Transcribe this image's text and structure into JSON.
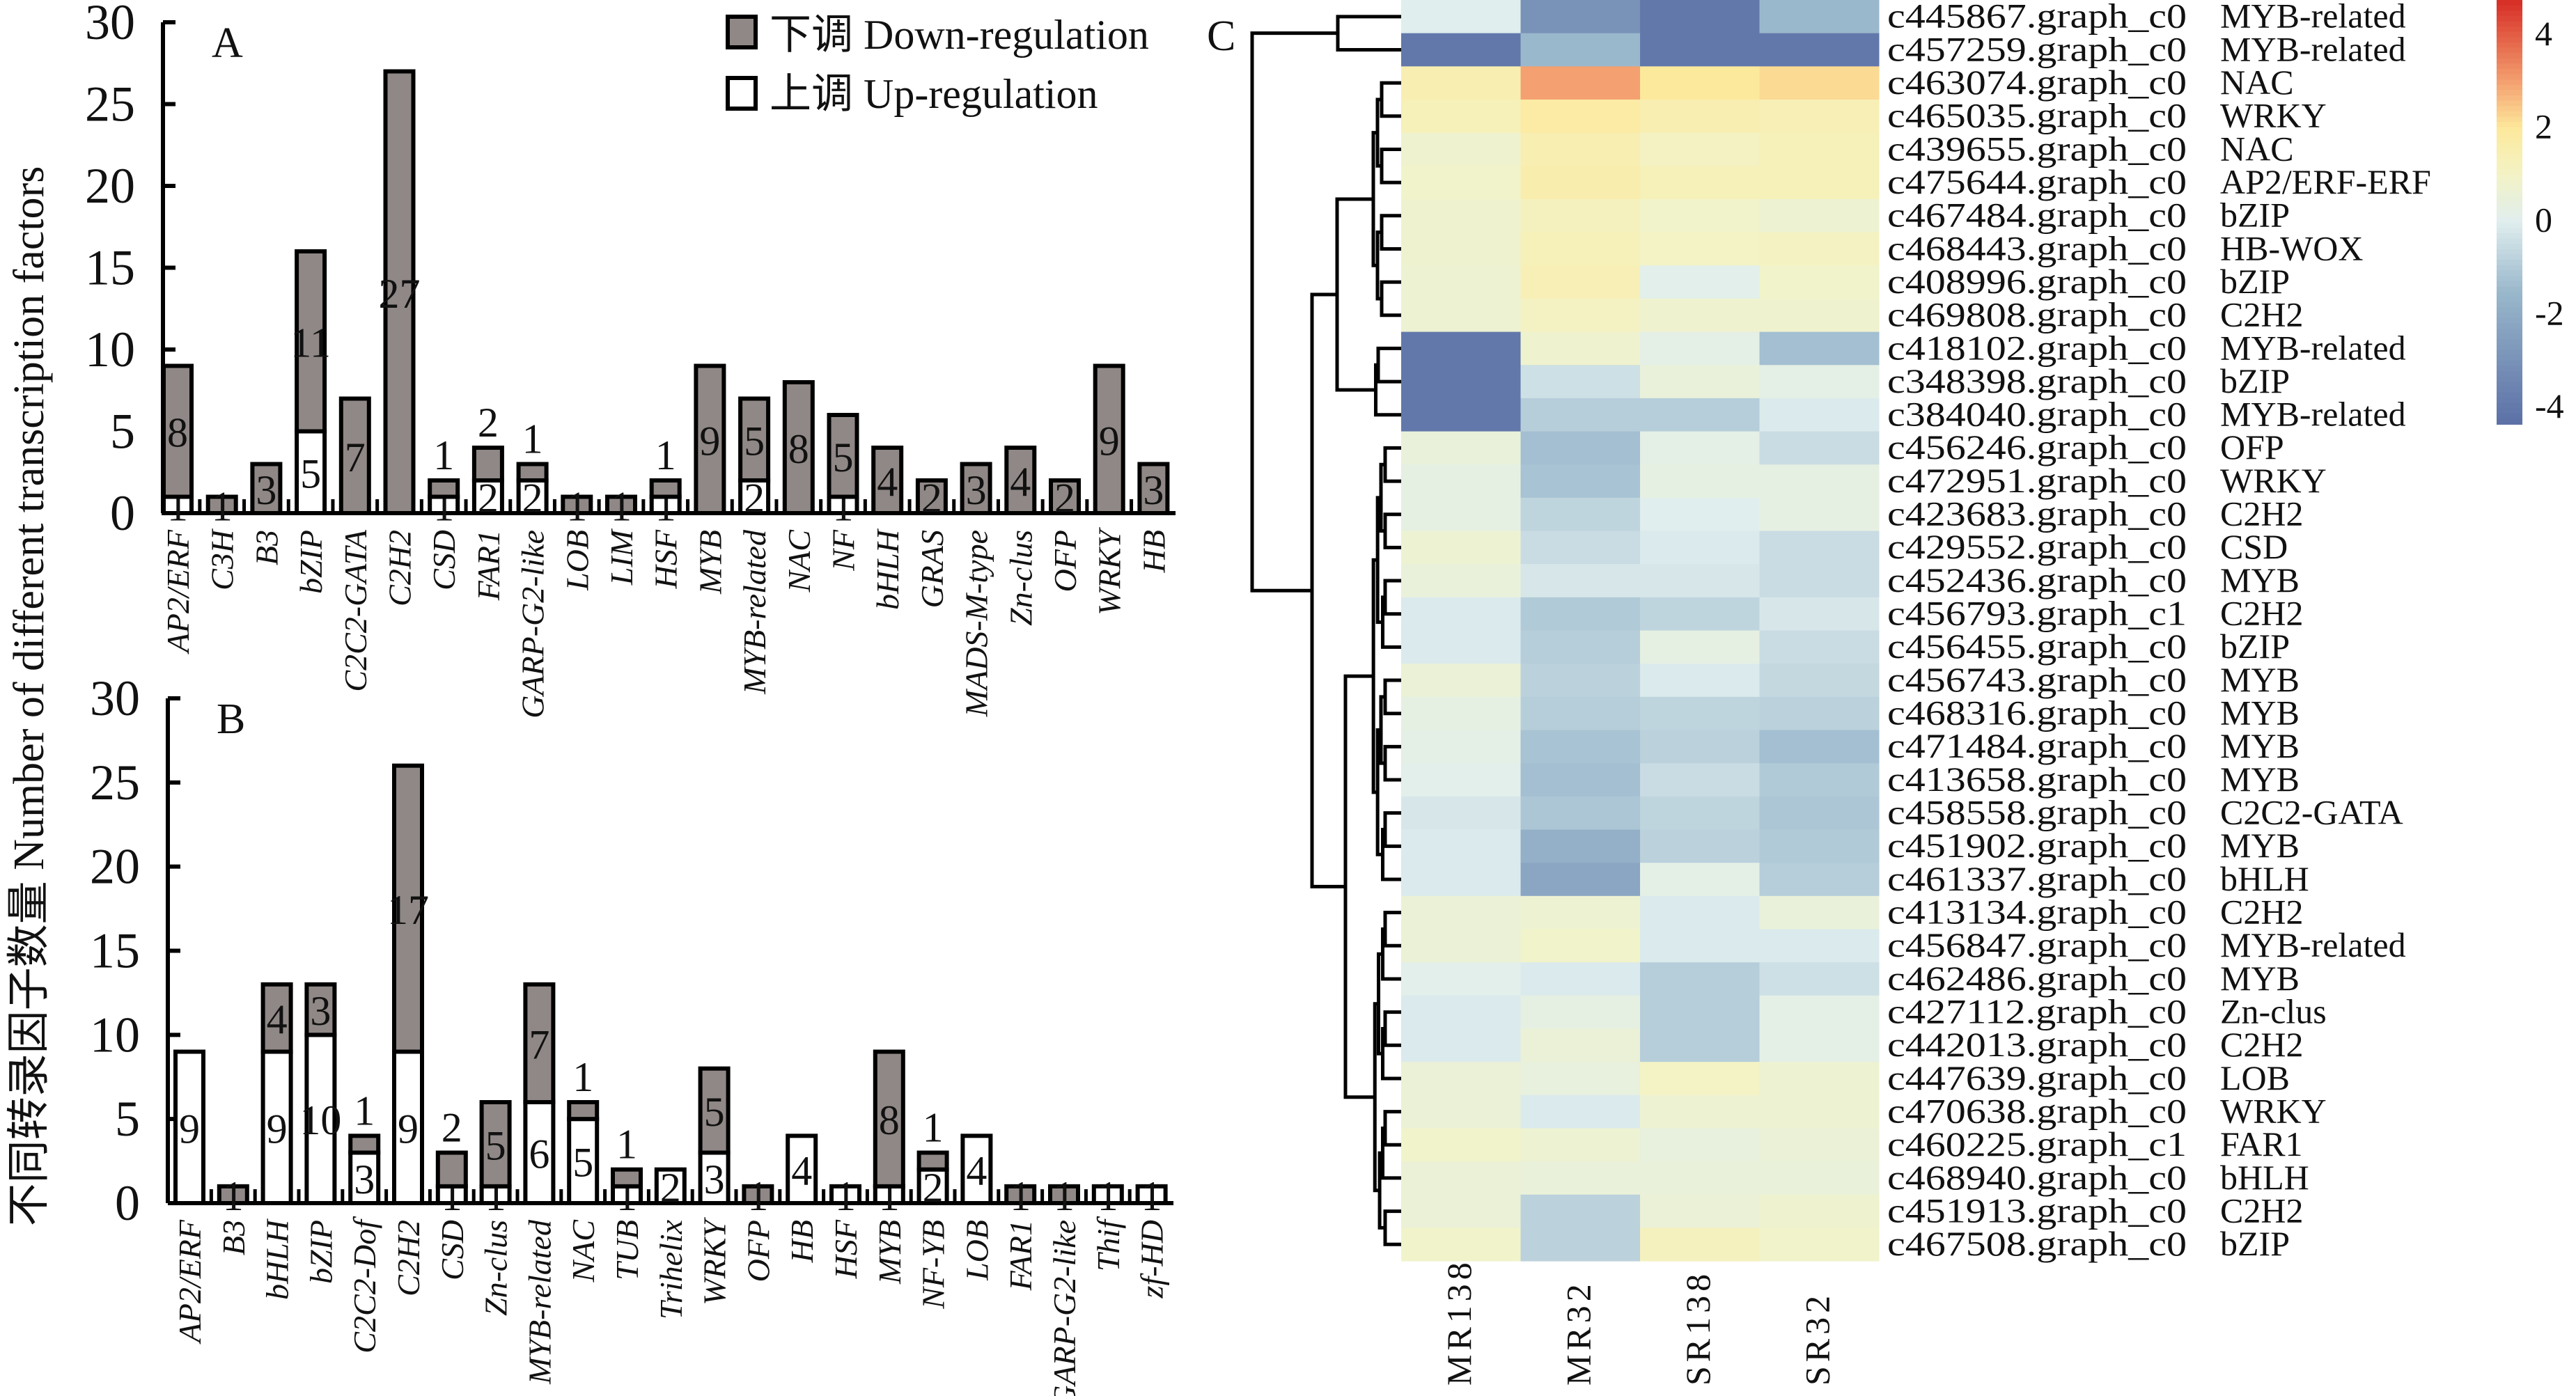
{
  "y_axis_title": "不同转录因子数量 Number of different transcription factors",
  "legend": {
    "down_label": "下调 Down-regulation",
    "up_label": "上调 Up-regulation",
    "down_color": "#8f8886",
    "up_color": "#ffffff"
  },
  "chart_data": [
    {
      "type": "bar",
      "stacked": true,
      "panel_label": "A",
      "ylim": [
        0,
        30
      ],
      "yticks": [
        "0",
        "5",
        "10",
        "15",
        "20",
        "25",
        "30"
      ],
      "categories": [
        "AP2/ERF",
        "C3H",
        "B3",
        "bZIP",
        "C2C2-GATA",
        "C2H2",
        "CSD",
        "FAR1",
        "GARP-G2-like",
        "LOB",
        "LIM",
        "HSF",
        "MYB",
        "MYB-related",
        "NAC",
        "NF",
        "bHLH",
        "GRAS",
        "MADS-M-type",
        "Zn-clus",
        "OFP",
        "WRKY",
        "HB"
      ],
      "series": [
        {
          "name": "上调 Up-regulation",
          "values": [
            1,
            0,
            0,
            5,
            0,
            0,
            1,
            2,
            2,
            0,
            0,
            1,
            0,
            2,
            0,
            1,
            0,
            0,
            0,
            0,
            0,
            0,
            0
          ]
        },
        {
          "name": "下调 Down-regulation",
          "values": [
            8,
            1,
            3,
            11,
            7,
            27,
            1,
            2,
            1,
            1,
            1,
            1,
            9,
            5,
            8,
            5,
            4,
            2,
            3,
            4,
            2,
            9,
            3
          ]
        }
      ]
    },
    {
      "type": "bar",
      "stacked": true,
      "panel_label": "B",
      "ylim": [
        0,
        30
      ],
      "yticks": [
        "0",
        "5",
        "10",
        "15",
        "20",
        "25",
        "30"
      ],
      "categories": [
        "AP2/ERF",
        "B3",
        "bHLH",
        "bZIP",
        "C2C2-Dof",
        "C2H2",
        "CSD",
        "Zn-clus",
        "MYB-related",
        "NAC",
        "TUB",
        "Trihelix",
        "WRKY",
        "OFP",
        "HB",
        "HSF",
        "MYB",
        "NF-YB",
        "LOB",
        "FAR1",
        "GARP-G2-like",
        "Thif",
        "zf-HD"
      ],
      "series": [
        {
          "name": "上调 Up-regulation",
          "values": [
            9,
            0,
            9,
            10,
            3,
            9,
            1,
            1,
            6,
            5,
            1,
            2,
            3,
            0,
            4,
            1,
            1,
            2,
            4,
            0,
            0,
            1,
            1
          ]
        },
        {
          "name": "下调 Down-regulation",
          "values": [
            0,
            1,
            4,
            3,
            1,
            17,
            2,
            5,
            7,
            1,
            1,
            0,
            5,
            1,
            0,
            0,
            8,
            1,
            0,
            1,
            1,
            0,
            0
          ]
        }
      ]
    },
    {
      "type": "heatmap",
      "panel_label": "C",
      "columns": [
        "MR138",
        "MR32",
        "SR138",
        "SR32"
      ],
      "colorbar_ticks": [
        "4",
        "2",
        "0",
        "-2",
        "-4"
      ],
      "colorbar_range": [
        -4.4,
        4.7
      ],
      "colormap": [
        "#5a6ea5",
        "#9ab8cc",
        "#e0eeee",
        "#f3f3c6",
        "#fde99c",
        "#f4a070",
        "#d73027"
      ],
      "rows": [
        {
          "id": "c445867.graph_c0",
          "family": "MYB-related",
          "values": [
            0.0,
            -3.0,
            -4.0,
            -1.5
          ]
        },
        {
          "id": "c457259.graph_c0",
          "family": "MYB-related",
          "values": [
            -4.0,
            -1.5,
            -4.0,
            -4.0
          ]
        },
        {
          "id": "c463074.graph_c0",
          "family": "NAC",
          "values": [
            1.5,
            3.0,
            2.0,
            2.2
          ]
        },
        {
          "id": "c465035.graph_c0",
          "family": "WRKY",
          "values": [
            1.3,
            1.8,
            1.5,
            1.4
          ]
        },
        {
          "id": "c439655.graph_c0",
          "family": "NAC",
          "values": [
            0.8,
            1.5,
            1.1,
            1.3
          ]
        },
        {
          "id": "c475644.graph_c0",
          "family": "AP2/ERF-ERF",
          "values": [
            0.9,
            1.6,
            1.3,
            1.3
          ]
        },
        {
          "id": "c467484.graph_c0",
          "family": "bZIP",
          "values": [
            0.8,
            1.2,
            0.9,
            0.7
          ]
        },
        {
          "id": "c468443.graph_c0",
          "family": "HB-WOX",
          "values": [
            0.8,
            1.3,
            1.0,
            1.1
          ]
        },
        {
          "id": "c408996.graph_c0",
          "family": "bZIP",
          "values": [
            0.7,
            1.4,
            0.1,
            0.9
          ]
        },
        {
          "id": "c469808.graph_c0",
          "family": "C2H2",
          "values": [
            0.7,
            1.1,
            0.8,
            0.8
          ]
        },
        {
          "id": "c418102.graph_c0",
          "family": "MYB-related",
          "values": [
            -4.0,
            0.8,
            0.2,
            -1.3
          ]
        },
        {
          "id": "c348398.graph_c0",
          "family": "bZIP",
          "values": [
            -4.0,
            -0.4,
            0.5,
            0.2
          ]
        },
        {
          "id": "c384040.graph_c0",
          "family": "MYB-related",
          "values": [
            -4.0,
            -0.9,
            -0.9,
            -0.1
          ]
        },
        {
          "id": "c456246.graph_c0",
          "family": "OFP",
          "values": [
            0.5,
            -1.3,
            0.2,
            -0.5
          ]
        },
        {
          "id": "c472951.graph_c0",
          "family": "WRKY",
          "values": [
            0.3,
            -1.2,
            0.3,
            0.3
          ]
        },
        {
          "id": "c423683.graph_c0",
          "family": "C2H2",
          "values": [
            0.3,
            -0.7,
            0.0,
            0.3
          ]
        },
        {
          "id": "c429552.graph_c0",
          "family": "CSD",
          "values": [
            0.7,
            -0.5,
            -0.1,
            -0.5
          ]
        },
        {
          "id": "c452436.graph_c0",
          "family": "MYB",
          "values": [
            0.5,
            -0.2,
            -0.2,
            -0.5
          ]
        },
        {
          "id": "c456793.graph_c1",
          "family": "C2H2",
          "values": [
            -0.1,
            -1.0,
            -0.7,
            -0.2
          ]
        },
        {
          "id": "c456455.graph_c0",
          "family": "bZIP",
          "values": [
            -0.1,
            -0.9,
            0.3,
            -0.5
          ]
        },
        {
          "id": "c456743.graph_c0",
          "family": "MYB",
          "values": [
            0.6,
            -0.8,
            -0.1,
            -0.6
          ]
        },
        {
          "id": "c468316.graph_c0",
          "family": "MYB",
          "values": [
            0.3,
            -0.9,
            -0.7,
            -0.8
          ]
        },
        {
          "id": "c471484.graph_c0",
          "family": "MYB",
          "values": [
            0.2,
            -1.2,
            -0.8,
            -1.3
          ]
        },
        {
          "id": "c413658.graph_c0",
          "family": "MYB",
          "values": [
            0.1,
            -1.3,
            -0.5,
            -1.0
          ]
        },
        {
          "id": "c458558.graph_c0",
          "family": "C2C2-GATA",
          "values": [
            -0.2,
            -1.1,
            -0.7,
            -1.1
          ]
        },
        {
          "id": "c451902.graph_c0",
          "family": "MYB",
          "values": [
            -0.1,
            -1.8,
            -0.8,
            -1.0
          ]
        },
        {
          "id": "c461337.graph_c0",
          "family": "bHLH",
          "values": [
            -0.1,
            -2.2,
            0.2,
            -0.9
          ]
        },
        {
          "id": "c413134.graph_c0",
          "family": "C2H2",
          "values": [
            0.6,
            0.7,
            -0.1,
            0.5
          ]
        },
        {
          "id": "c456847.graph_c0",
          "family": "MYB-related",
          "values": [
            0.6,
            0.9,
            -0.1,
            -0.1
          ]
        },
        {
          "id": "c462486.graph_c0",
          "family": "MYB",
          "values": [
            0.1,
            -0.1,
            -0.9,
            -0.4
          ]
        },
        {
          "id": "c427112.graph_c0",
          "family": "Zn-clus",
          "values": [
            -0.1,
            0.3,
            -0.9,
            0.2
          ]
        },
        {
          "id": "c442013.graph_c0",
          "family": "C2H2",
          "values": [
            -0.1,
            0.6,
            -0.9,
            0.2
          ]
        },
        {
          "id": "c447639.graph_c0",
          "family": "LOB",
          "values": [
            0.6,
            0.4,
            1.0,
            0.7
          ]
        },
        {
          "id": "c470638.graph_c0",
          "family": "WRKY",
          "values": [
            0.6,
            -0.1,
            0.7,
            0.7
          ]
        },
        {
          "id": "c460225.graph_c1",
          "family": "FAR1",
          "values": [
            0.9,
            0.7,
            0.4,
            0.6
          ]
        },
        {
          "id": "c468940.graph_c0",
          "family": "bHLH",
          "values": [
            0.6,
            0.5,
            0.5,
            0.5
          ]
        },
        {
          "id": "c451913.graph_c0",
          "family": "C2H2",
          "values": [
            0.6,
            -0.8,
            0.6,
            0.8
          ]
        },
        {
          "id": "c467508.graph_c0",
          "family": "bZIP",
          "values": [
            0.9,
            -0.8,
            1.2,
            0.9
          ]
        }
      ]
    }
  ]
}
